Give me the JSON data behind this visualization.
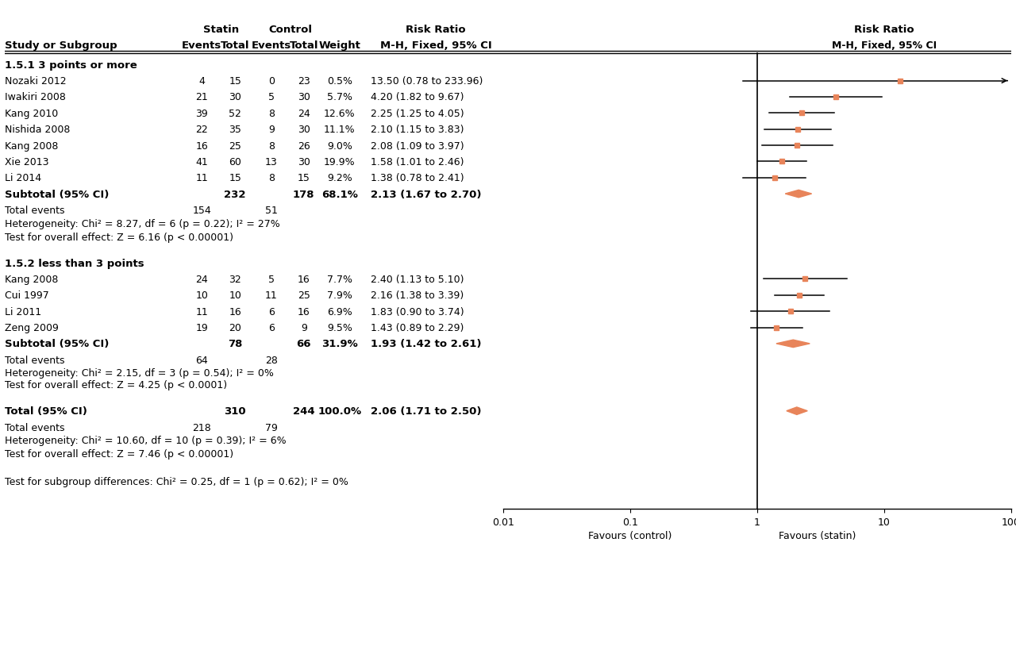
{
  "group1_header": "1.5.1 3 points or more",
  "group1_studies": [
    {
      "name": "Nozaki 2012",
      "se": 4,
      "st": 15,
      "ce": 0,
      "ct": 23,
      "weight": "0.5%",
      "rr": 13.5,
      "ci_lo": 0.78,
      "ci_hi": 233.96,
      "rr_text": "13.50 (0.78 to 233.96)",
      "arrow": true
    },
    {
      "name": "Iwakiri 2008",
      "se": 21,
      "st": 30,
      "ce": 5,
      "ct": 30,
      "weight": "5.7%",
      "rr": 4.2,
      "ci_lo": 1.82,
      "ci_hi": 9.67,
      "rr_text": "4.20 (1.82 to 9.67)",
      "arrow": false
    },
    {
      "name": "Kang 2010",
      "se": 39,
      "st": 52,
      "ce": 8,
      "ct": 24,
      "weight": "12.6%",
      "rr": 2.25,
      "ci_lo": 1.25,
      "ci_hi": 4.05,
      "rr_text": "2.25 (1.25 to 4.05)",
      "arrow": false
    },
    {
      "name": "Nishida 2008",
      "se": 22,
      "st": 35,
      "ce": 9,
      "ct": 30,
      "weight": "11.1%",
      "rr": 2.1,
      "ci_lo": 1.15,
      "ci_hi": 3.83,
      "rr_text": "2.10 (1.15 to 3.83)",
      "arrow": false
    },
    {
      "name": "Kang 2008",
      "se": 16,
      "st": 25,
      "ce": 8,
      "ct": 26,
      "weight": "9.0%",
      "rr": 2.08,
      "ci_lo": 1.09,
      "ci_hi": 3.97,
      "rr_text": "2.08 (1.09 to 3.97)",
      "arrow": false
    },
    {
      "name": "Xie 2013",
      "se": 41,
      "st": 60,
      "ce": 13,
      "ct": 30,
      "weight": "19.9%",
      "rr": 1.58,
      "ci_lo": 1.01,
      "ci_hi": 2.46,
      "rr_text": "1.58 (1.01 to 2.46)",
      "arrow": false
    },
    {
      "name": "Li 2014",
      "se": 11,
      "st": 15,
      "ce": 8,
      "ct": 15,
      "weight": "9.2%",
      "rr": 1.38,
      "ci_lo": 0.78,
      "ci_hi": 2.41,
      "rr_text": "1.38 (0.78 to 2.41)",
      "arrow": false
    }
  ],
  "group1_subtotal": {
    "total_statin": "232",
    "total_control": "178",
    "weight": "68.1%",
    "rr": 2.13,
    "ci_lo": 1.67,
    "ci_hi": 2.7,
    "rr_text": "2.13 (1.67 to 2.70)",
    "events_statin": "154",
    "events_control": "51",
    "heterogeneity": "Heterogeneity: Chi² = 8.27, df = 6 (p = 0.22); I² = 27%",
    "overall": "Test for overall effect: Z = 6.16 (p < 0.00001)"
  },
  "group2_header": "1.5.2 less than 3 points",
  "group2_studies": [
    {
      "name": "Kang 2008",
      "se": 24,
      "st": 32,
      "ce": 5,
      "ct": 16,
      "weight": "7.7%",
      "rr": 2.4,
      "ci_lo": 1.13,
      "ci_hi": 5.1,
      "rr_text": "2.40 (1.13 to 5.10)",
      "arrow": false
    },
    {
      "name": "Cui 1997",
      "se": 10,
      "st": 10,
      "ce": 11,
      "ct": 25,
      "weight": "7.9%",
      "rr": 2.16,
      "ci_lo": 1.38,
      "ci_hi": 3.39,
      "rr_text": "2.16 (1.38 to 3.39)",
      "arrow": false
    },
    {
      "name": "Li 2011",
      "se": 11,
      "st": 16,
      "ce": 6,
      "ct": 16,
      "weight": "6.9%",
      "rr": 1.83,
      "ci_lo": 0.9,
      "ci_hi": 3.74,
      "rr_text": "1.83 (0.90 to 3.74)",
      "arrow": false
    },
    {
      "name": "Zeng 2009",
      "se": 19,
      "st": 20,
      "ce": 6,
      "ct": 9,
      "weight": "9.5%",
      "rr": 1.43,
      "ci_lo": 0.89,
      "ci_hi": 2.29,
      "rr_text": "1.43 (0.89 to 2.29)",
      "arrow": false
    }
  ],
  "group2_subtotal": {
    "total_statin": "78",
    "total_control": "66",
    "weight": "31.9%",
    "rr": 1.93,
    "ci_lo": 1.42,
    "ci_hi": 2.61,
    "rr_text": "1.93 (1.42 to 2.61)",
    "events_statin": "64",
    "events_control": "28",
    "heterogeneity": "Heterogeneity: Chi² = 2.15, df = 3 (p = 0.54); I² = 0%",
    "overall": "Test for overall effect: Z = 4.25 (p < 0.0001)"
  },
  "total": {
    "total_statin": "310",
    "total_control": "244",
    "weight": "100.0%",
    "rr": 2.06,
    "ci_lo": 1.71,
    "ci_hi": 2.5,
    "rr_text": "2.06 (1.71 to 2.50)",
    "events_statin": "218",
    "events_control": "79",
    "heterogeneity": "Heterogeneity: Chi² = 10.60, df = 10 (p = 0.39); I² = 6%",
    "overall": "Test for overall effect: Z = 7.46 (p < 0.00001)",
    "subgroup": "Test for subgroup differences: Chi² = 0.25, df = 1 (p = 0.62); I² = 0%"
  },
  "colors": {
    "diamond": "#E8845A",
    "dot": "#E8845A"
  },
  "favours_left": "Favours (control)",
  "favours_right": "Favours (statin)"
}
